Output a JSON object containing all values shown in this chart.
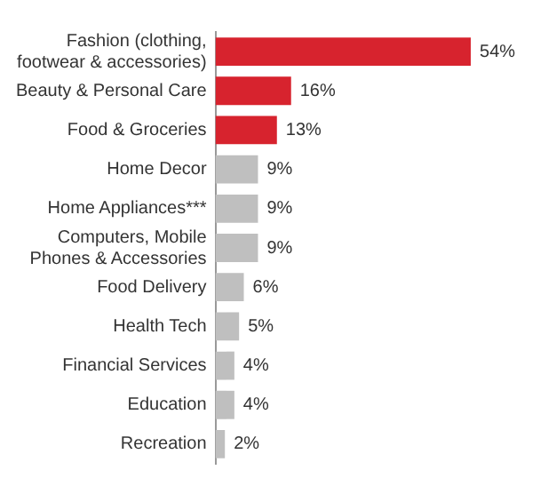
{
  "chart_data": {
    "type": "bar",
    "orientation": "horizontal",
    "categories": [
      "Fashion (clothing, footwear & accessories)",
      "Beauty & Personal Care",
      "Food & Groceries",
      "Home Decor",
      "Home Appliances***",
      "Computers, Mobile Phones & Accessories",
      "Food Delivery",
      "Health Tech",
      "Financial Services",
      "Education",
      "Recreation"
    ],
    "values": [
      54,
      16,
      13,
      9,
      9,
      9,
      6,
      5,
      4,
      4,
      2
    ],
    "value_labels": [
      "54%",
      "16%",
      "13%",
      "9%",
      "9%",
      "9%",
      "6%",
      "5%",
      "4%",
      "4%",
      "2%"
    ],
    "colors": [
      "#d7232e",
      "#d7232e",
      "#d7232e",
      "#bfbfbf",
      "#bfbfbf",
      "#bfbfbf",
      "#bfbfbf",
      "#bfbfbf",
      "#bfbfbf",
      "#bfbfbf",
      "#bfbfbf"
    ],
    "legend": false
  }
}
